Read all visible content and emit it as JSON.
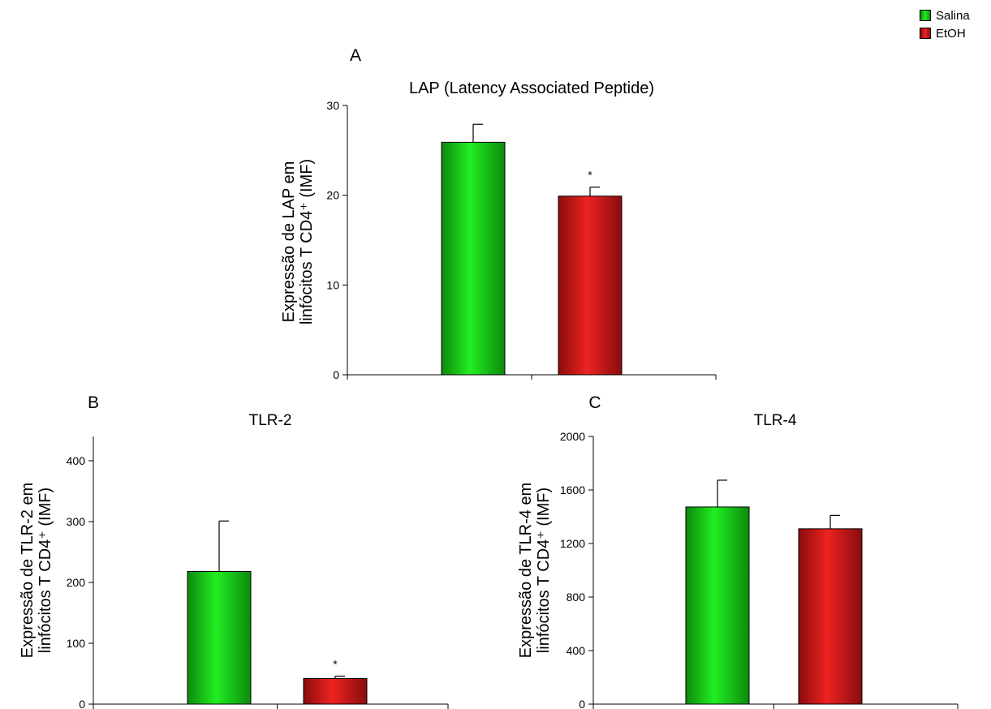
{
  "legend": {
    "items": [
      {
        "label": "Salina",
        "color": "#19d419"
      },
      {
        "label": "EtOH",
        "color": "#d41414"
      }
    ]
  },
  "chart_data": [
    {
      "type": "bar",
      "panel": "A",
      "title": "LAP (Latency Associated Peptide)",
      "ylabel_line1": "Expressão de LAP em",
      "ylabel_line2": "linfócitos T CD4⁺ (IMF)",
      "categories": [
        "Salina",
        "EtOH"
      ],
      "values": [
        25.9,
        19.9
      ],
      "errors": [
        2.0,
        1.0
      ],
      "significance": [
        "",
        "*"
      ],
      "colors": [
        "#19d419",
        "#d41414"
      ],
      "ylim": [
        0,
        30
      ],
      "yticks": [
        "0",
        "10",
        "20",
        "30"
      ]
    },
    {
      "type": "bar",
      "panel": "B",
      "title": "TLR-2",
      "ylabel_line1": "Expressão de TLR-2 em",
      "ylabel_line2": "linfócitos T CD4⁺ (IMF)",
      "categories": [
        "Salina",
        "EtOH"
      ],
      "values": [
        218,
        42
      ],
      "errors": [
        83,
        4
      ],
      "significance": [
        "",
        "*"
      ],
      "colors": [
        "#19d419",
        "#d41414"
      ],
      "ylim": [
        0,
        440
      ],
      "yticks": [
        "0",
        "100",
        "200",
        "300",
        "400"
      ]
    },
    {
      "type": "bar",
      "panel": "C",
      "title": "TLR-4",
      "ylabel_line1": "Expressão de TLR-4 em",
      "ylabel_line2": "linfócitos T CD4⁺ (IMF)",
      "categories": [
        "Salina",
        "EtOH"
      ],
      "values": [
        1473,
        1310
      ],
      "errors": [
        200,
        100
      ],
      "significance": [
        "",
        ""
      ],
      "colors": [
        "#19d419",
        "#d41414"
      ],
      "ylim": [
        0,
        2000
      ],
      "yticks": [
        "0",
        "400",
        "800",
        "1200",
        "1600",
        "2000"
      ]
    }
  ]
}
